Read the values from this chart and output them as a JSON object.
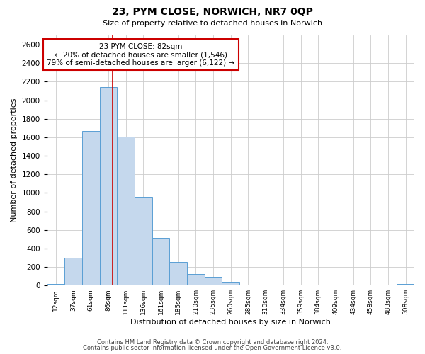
{
  "title": "23, PYM CLOSE, NORWICH, NR7 0QP",
  "subtitle": "Size of property relative to detached houses in Norwich",
  "xlabel": "Distribution of detached houses by size in Norwich",
  "ylabel": "Number of detached properties",
  "bar_color": "#c5d8ed",
  "bar_edge_color": "#5a9fd4",
  "bin_labels": [
    "12sqm",
    "37sqm",
    "61sqm",
    "86sqm",
    "111sqm",
    "136sqm",
    "161sqm",
    "185sqm",
    "210sqm",
    "235sqm",
    "260sqm",
    "285sqm",
    "310sqm",
    "334sqm",
    "359sqm",
    "384sqm",
    "409sqm",
    "434sqm",
    "458sqm",
    "483sqm",
    "508sqm"
  ],
  "bar_heights": [
    20,
    300,
    1670,
    2140,
    1610,
    960,
    510,
    255,
    125,
    95,
    30,
    5,
    5,
    5,
    5,
    5,
    5,
    5,
    5,
    5,
    20
  ],
  "ylim": [
    0,
    2700
  ],
  "yticks": [
    0,
    200,
    400,
    600,
    800,
    1000,
    1200,
    1400,
    1600,
    1800,
    2000,
    2200,
    2400,
    2600
  ],
  "property_line_x": 3.74,
  "annotation_title": "23 PYM CLOSE: 82sqm",
  "annotation_line1": "← 20% of detached houses are smaller (1,546)",
  "annotation_line2": "79% of semi-detached houses are larger (6,122) →",
  "annotation_box_color": "#ffffff",
  "annotation_box_edge": "#cc0000",
  "vline_color": "#cc0000",
  "footer1": "Contains HM Land Registry data © Crown copyright and database right 2024.",
  "footer2": "Contains public sector information licensed under the Open Government Licence v3.0.",
  "background_color": "#ffffff",
  "grid_color": "#cccccc"
}
